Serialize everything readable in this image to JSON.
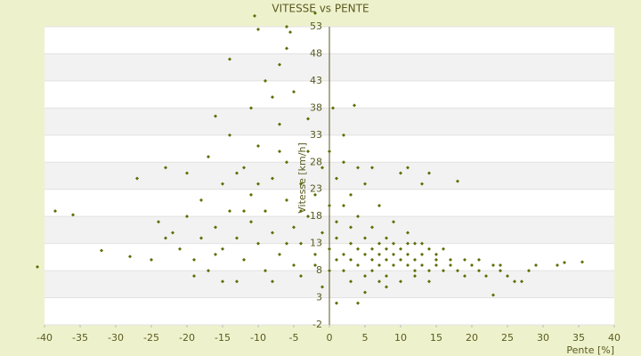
{
  "chart_data": {
    "type": "scatter",
    "title": "VITESSE vs PENTE",
    "x_label": "Pente [%]",
    "y_label": "Vitesse [km/h]",
    "color": "#5c6e00",
    "grid": true,
    "xlim": [
      -40,
      40
    ],
    "xticks": [
      -40,
      -35,
      -30,
      -25,
      -20,
      -15,
      -10,
      -5,
      0,
      5,
      10,
      15,
      20,
      25,
      30,
      35,
      40
    ],
    "ylim": [
      -2,
      53
    ],
    "yticks": [
      53,
      48,
      43,
      38,
      33,
      28,
      23,
      18,
      13,
      8,
      3,
      -2
    ],
    "x": [
      -41,
      -38.5,
      -36,
      -32,
      -28,
      -27,
      -23,
      -10.5,
      -10,
      -6,
      -5.5,
      -2,
      -14,
      -6,
      -7,
      -8,
      -16,
      3.5,
      0.5,
      33,
      35.5,
      32,
      23,
      18,
      14,
      -24,
      -22,
      -21,
      -20,
      -19,
      -18,
      -18,
      -17,
      -16,
      -15,
      -15,
      -14,
      -13,
      -13,
      -12,
      -12,
      -11,
      -11,
      -10,
      -10,
      -9,
      -9,
      -8,
      -8,
      -7,
      -7,
      -6,
      -6,
      -5,
      -5,
      -4,
      -4,
      -3,
      -3,
      -2,
      -2,
      -1,
      -1,
      -20,
      -17,
      -14,
      -11,
      -9,
      -5,
      -3,
      -23,
      -25,
      -19,
      -15,
      -8,
      -4,
      -1,
      -16,
      -12,
      -6,
      -2,
      -10,
      -13,
      -7,
      -4,
      0,
      1,
      1,
      2,
      2,
      3,
      3,
      4,
      4,
      5,
      5,
      6,
      6,
      6,
      7,
      7,
      7,
      8,
      8,
      8,
      9,
      9,
      10,
      10,
      11,
      11,
      12,
      12,
      13,
      13,
      14,
      15,
      15,
      16,
      17,
      18,
      19,
      20,
      21,
      22,
      23,
      24,
      25,
      26,
      27,
      0,
      1,
      2,
      3,
      4,
      5,
      6,
      7,
      8,
      9,
      10,
      11,
      12,
      13,
      14,
      15,
      16,
      17,
      3,
      5,
      8,
      10,
      1,
      4,
      0,
      2,
      4,
      6,
      11,
      1,
      3,
      2,
      0,
      5,
      7,
      12,
      14,
      9,
      11,
      13,
      19,
      21,
      24,
      28,
      29
    ],
    "y": [
      8.7,
      19,
      18.3,
      11.7,
      10.6,
      25,
      27,
      55,
      52.5,
      53,
      52,
      55.5,
      47,
      49,
      46,
      40,
      36.5,
      38.5,
      38,
      9.5,
      9.6,
      9,
      3.5,
      24.5,
      26,
      17,
      15,
      12,
      18,
      10,
      14,
      21,
      8,
      16,
      24,
      12,
      19,
      6,
      14,
      27,
      10,
      17,
      22,
      31,
      13,
      8,
      19,
      25,
      15,
      35,
      11,
      21,
      28,
      16,
      9,
      24,
      13,
      30,
      18,
      11,
      22,
      15,
      27,
      26,
      29,
      33,
      38,
      43,
      41,
      36,
      14,
      10,
      7,
      6,
      6,
      7,
      5,
      11,
      19,
      13,
      9,
      24,
      26,
      30,
      19,
      12,
      10,
      14,
      11,
      8,
      13,
      10,
      12,
      9,
      11,
      14,
      10,
      12,
      8,
      11,
      13,
      9,
      10,
      12,
      7,
      11,
      9,
      10,
      12,
      9,
      11,
      8,
      10,
      9,
      11,
      8,
      10,
      9,
      8,
      9,
      8,
      7,
      9,
      8,
      7,
      9,
      8,
      7,
      6,
      6,
      20,
      25,
      28,
      22,
      18,
      24,
      16,
      20,
      14,
      17,
      26,
      15,
      13,
      24,
      12,
      11,
      12,
      10,
      6,
      4,
      5,
      6,
      2,
      2,
      30,
      33,
      27,
      27,
      27,
      17,
      16,
      20,
      8,
      7,
      6,
      7,
      6,
      13,
      13,
      13,
      10,
      10,
      9,
      8,
      9
    ]
  }
}
